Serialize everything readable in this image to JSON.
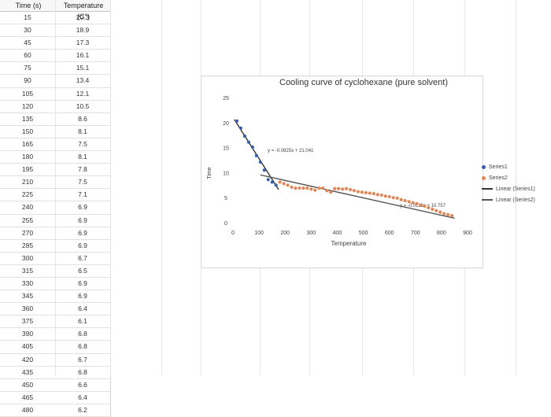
{
  "table": {
    "headers": [
      "Time (s)",
      "Temperature (C°)"
    ],
    "rows": [
      [
        "15",
        "20.3"
      ],
      [
        "30",
        "18.9"
      ],
      [
        "45",
        "17.3"
      ],
      [
        "60",
        "16.1"
      ],
      [
        "75",
        "15.1"
      ],
      [
        "90",
        "13.4"
      ],
      [
        "105",
        "12.1"
      ],
      [
        "120",
        "10.5"
      ],
      [
        "135",
        "8.6"
      ],
      [
        "150",
        "8.1"
      ],
      [
        "165",
        "7.5"
      ],
      [
        "180",
        "8.1"
      ],
      [
        "195",
        "7.8"
      ],
      [
        "210",
        "7.5"
      ],
      [
        "225",
        "7.1"
      ],
      [
        "240",
        "6.9"
      ],
      [
        "255",
        "6.9"
      ],
      [
        "270",
        "6.9"
      ],
      [
        "285",
        "6.9"
      ],
      [
        "300",
        "6.7"
      ],
      [
        "315",
        "6.5"
      ],
      [
        "330",
        "6.9"
      ],
      [
        "345",
        "6.9"
      ],
      [
        "360",
        "6.4"
      ],
      [
        "375",
        "6.1"
      ],
      [
        "390",
        "6.8"
      ],
      [
        "405",
        "6.8"
      ],
      [
        "420",
        "6.7"
      ],
      [
        "435",
        "6.8"
      ],
      [
        "450",
        "6.6"
      ],
      [
        "465",
        "6.4"
      ],
      [
        "480",
        "6.2"
      ]
    ]
  },
  "chart_data": {
    "type": "scatter",
    "title": "Cooling curve of cyclohexane (pure solvent)",
    "xlabel": "Temperature",
    "ylabel": "Time",
    "xlim": [
      0,
      900
    ],
    "ylim": [
      0,
      25
    ],
    "xticks": [
      "0",
      "100",
      "200",
      "300",
      "400",
      "500",
      "600",
      "700",
      "800",
      "900"
    ],
    "yticks": [
      "0",
      "5",
      "10",
      "15",
      "20",
      "25"
    ],
    "series": [
      {
        "name": "Series1",
        "color": "#3a5fa8",
        "points": [
          [
            15,
            20.3
          ],
          [
            30,
            18.9
          ],
          [
            45,
            17.3
          ],
          [
            60,
            16.1
          ],
          [
            75,
            15.1
          ],
          [
            90,
            13.4
          ],
          [
            105,
            12.1
          ],
          [
            120,
            10.5
          ],
          [
            135,
            8.6
          ],
          [
            150,
            8.1
          ],
          [
            165,
            7.5
          ]
        ]
      },
      {
        "name": "Series2",
        "color": "#e0875a",
        "points": [
          [
            180,
            8.1
          ],
          [
            195,
            7.8
          ],
          [
            210,
            7.5
          ],
          [
            225,
            7.1
          ],
          [
            240,
            6.9
          ],
          [
            255,
            6.9
          ],
          [
            270,
            6.9
          ],
          [
            285,
            6.9
          ],
          [
            300,
            6.7
          ],
          [
            315,
            6.5
          ],
          [
            330,
            6.9
          ],
          [
            345,
            6.9
          ],
          [
            360,
            6.4
          ],
          [
            375,
            6.1
          ],
          [
            390,
            6.8
          ],
          [
            405,
            6.8
          ],
          [
            420,
            6.7
          ],
          [
            435,
            6.8
          ],
          [
            450,
            6.6
          ],
          [
            465,
            6.4
          ],
          [
            480,
            6.2
          ],
          [
            495,
            6.1
          ],
          [
            510,
            6.0
          ],
          [
            525,
            5.9
          ],
          [
            540,
            5.8
          ],
          [
            555,
            5.6
          ],
          [
            570,
            5.5
          ],
          [
            585,
            5.3
          ],
          [
            600,
            5.2
          ],
          [
            615,
            5.0
          ],
          [
            630,
            4.9
          ],
          [
            645,
            4.6
          ],
          [
            660,
            4.4
          ],
          [
            675,
            4.2
          ],
          [
            690,
            4.0
          ],
          [
            705,
            3.8
          ],
          [
            720,
            3.5
          ],
          [
            735,
            3.3
          ],
          [
            750,
            3.0
          ],
          [
            765,
            2.7
          ],
          [
            780,
            2.4
          ],
          [
            795,
            2.1
          ],
          [
            810,
            1.8
          ],
          [
            825,
            1.6
          ],
          [
            840,
            1.4
          ]
        ]
      }
    ],
    "trendlines": [
      {
        "name": "Linear (Series1)",
        "slope": -0.0825,
        "intercept": 21.041,
        "x0": 5,
        "x1": 175,
        "label": "y = -0.0825x + 21.041"
      },
      {
        "name": "Linear (Series2)",
        "slope": -0.0116,
        "intercept": 10.757,
        "x0": 105,
        "x1": 850,
        "label": "y = -0.0116x + 10.757"
      }
    ],
    "legend": [
      "Series1",
      "Series2",
      "Linear (Series1)",
      "Linear (Series2)"
    ],
    "legend_position": "right"
  }
}
